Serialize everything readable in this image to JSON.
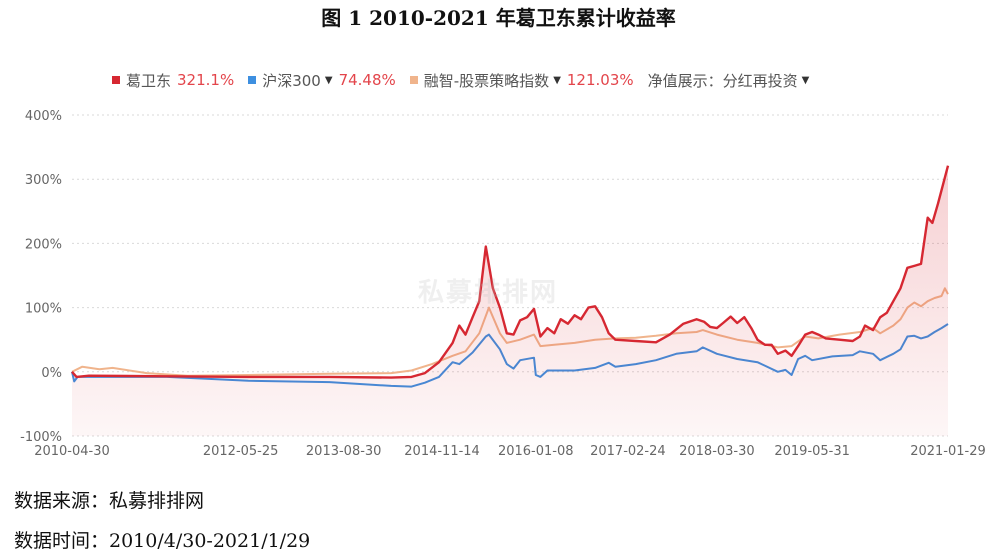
{
  "figure_title": "图 1 2010-2021 年葛卫东累计收益率",
  "watermark": "私募排排网",
  "legend": {
    "items": [
      {
        "name": "葛卫东",
        "value": "321.1%",
        "color": "#d62832",
        "dropdown": false
      },
      {
        "name": "沪深300",
        "value": "74.48%",
        "color": "#3d8fe0",
        "dropdown": true
      },
      {
        "name": "融智-股票策略指数",
        "value": "121.03%",
        "color": "#f0b48c",
        "dropdown": true
      }
    ],
    "net_value_label": "净值展示：分红再投资"
  },
  "footer": {
    "source": "数据来源：私募排排网",
    "time": "数据时间：2010/4/30-2021/1/29"
  },
  "chart_data": {
    "type": "line",
    "x_start": "2010-04-30",
    "x_end": "2021-01-29",
    "x_ticks": [
      "2010-04-30",
      "2012-05-25",
      "2013-08-30",
      "2014-11-14",
      "2016-01-08",
      "2017-02-24",
      "2018-03-30",
      "2019-05-31",
      "2021-01-29"
    ],
    "ylim": [
      -100,
      400
    ],
    "y_ticks": [
      "-100%",
      "0%",
      "100%",
      "200%",
      "300%",
      "400%"
    ],
    "grid": true,
    "legend_position": "top",
    "series": [
      {
        "name": "葛卫东",
        "color": "#d62832",
        "fill": true,
        "points": [
          [
            "2010-04-30",
            0
          ],
          [
            "2010-05-20",
            -8
          ],
          [
            "2010-07-15",
            -6
          ],
          [
            "2011-06-30",
            -7
          ],
          [
            "2012-06-29",
            -8
          ],
          [
            "2013-06-28",
            -8
          ],
          [
            "2014-03-31",
            -9
          ],
          [
            "2014-06-30",
            -8
          ],
          [
            "2014-08-29",
            -2
          ],
          [
            "2014-10-31",
            15
          ],
          [
            "2014-12-31",
            45
          ],
          [
            "2015-01-30",
            72
          ],
          [
            "2015-02-27",
            58
          ],
          [
            "2015-03-31",
            85
          ],
          [
            "2015-04-30",
            110
          ],
          [
            "2015-05-29",
            195
          ],
          [
            "2015-06-30",
            130
          ],
          [
            "2015-07-31",
            100
          ],
          [
            "2015-08-31",
            60
          ],
          [
            "2015-09-30",
            58
          ],
          [
            "2015-10-30",
            80
          ],
          [
            "2015-11-30",
            85
          ],
          [
            "2015-12-31",
            98
          ],
          [
            "2016-01-29",
            55
          ],
          [
            "2016-02-29",
            68
          ],
          [
            "2016-03-31",
            60
          ],
          [
            "2016-04-29",
            82
          ],
          [
            "2016-05-31",
            75
          ],
          [
            "2016-06-30",
            88
          ],
          [
            "2016-07-29",
            82
          ],
          [
            "2016-08-31",
            100
          ],
          [
            "2016-09-30",
            102
          ],
          [
            "2016-10-31",
            85
          ],
          [
            "2016-11-30",
            60
          ],
          [
            "2016-12-30",
            50
          ],
          [
            "2017-03-31",
            48
          ],
          [
            "2017-06-30",
            46
          ],
          [
            "2017-08-31",
            58
          ],
          [
            "2017-10-31",
            75
          ],
          [
            "2017-12-29",
            82
          ],
          [
            "2018-01-31",
            78
          ],
          [
            "2018-02-28",
            70
          ],
          [
            "2018-03-30",
            68
          ],
          [
            "2018-04-27",
            76
          ],
          [
            "2018-05-31",
            86
          ],
          [
            "2018-06-29",
            76
          ],
          [
            "2018-07-31",
            85
          ],
          [
            "2018-08-31",
            68
          ],
          [
            "2018-09-28",
            50
          ],
          [
            "2018-10-31",
            42
          ],
          [
            "2018-11-30",
            42
          ],
          [
            "2018-12-28",
            28
          ],
          [
            "2019-01-31",
            33
          ],
          [
            "2019-02-28",
            25
          ],
          [
            "2019-03-29",
            40
          ],
          [
            "2019-04-30",
            58
          ],
          [
            "2019-05-31",
            62
          ],
          [
            "2019-06-28",
            58
          ],
          [
            "2019-07-31",
            52
          ],
          [
            "2019-09-30",
            50
          ],
          [
            "2019-11-29",
            48
          ],
          [
            "2019-12-31",
            55
          ],
          [
            "2020-01-23",
            72
          ],
          [
            "2020-02-28",
            65
          ],
          [
            "2020-03-31",
            85
          ],
          [
            "2020-04-30",
            92
          ],
          [
            "2020-05-29",
            110
          ],
          [
            "2020-06-30",
            130
          ],
          [
            "2020-07-31",
            162
          ],
          [
            "2020-08-31",
            165
          ],
          [
            "2020-09-30",
            168
          ],
          [
            "2020-10-30",
            240
          ],
          [
            "2020-11-20",
            232
          ],
          [
            "2020-12-15",
            262
          ],
          [
            "2021-01-29",
            321
          ]
        ]
      },
      {
        "name": "沪深300",
        "color": "#3d8fe0",
        "fill": false,
        "points": [
          [
            "2010-04-30",
            0
          ],
          [
            "2010-05-10",
            -15
          ],
          [
            "2010-05-25",
            -8
          ],
          [
            "2010-12-31",
            -8
          ],
          [
            "2011-06-30",
            -8
          ],
          [
            "2012-06-29",
            -14
          ],
          [
            "2013-06-28",
            -16
          ],
          [
            "2014-03-31",
            -22
          ],
          [
            "2014-06-30",
            -23
          ],
          [
            "2014-08-29",
            -17
          ],
          [
            "2014-10-31",
            -8
          ],
          [
            "2014-12-31",
            15
          ],
          [
            "2015-01-30",
            12
          ],
          [
            "2015-03-31",
            30
          ],
          [
            "2015-05-29",
            55
          ],
          [
            "2015-06-12",
            58
          ],
          [
            "2015-07-31",
            35
          ],
          [
            "2015-08-31",
            12
          ],
          [
            "2015-09-30",
            5
          ],
          [
            "2015-10-30",
            18
          ],
          [
            "2015-12-31",
            22
          ],
          [
            "2016-01-08",
            -5
          ],
          [
            "2016-01-29",
            -8
          ],
          [
            "2016-02-29",
            2
          ],
          [
            "2016-06-30",
            2
          ],
          [
            "2016-09-30",
            6
          ],
          [
            "2016-11-30",
            14
          ],
          [
            "2016-12-30",
            8
          ],
          [
            "2017-03-31",
            12
          ],
          [
            "2017-06-30",
            18
          ],
          [
            "2017-09-29",
            28
          ],
          [
            "2017-12-29",
            32
          ],
          [
            "2018-01-26",
            38
          ],
          [
            "2018-03-30",
            28
          ],
          [
            "2018-06-29",
            20
          ],
          [
            "2018-09-28",
            15
          ],
          [
            "2018-12-28",
            0
          ],
          [
            "2019-01-31",
            3
          ],
          [
            "2019-02-28",
            -5
          ],
          [
            "2019-03-29",
            20
          ],
          [
            "2019-04-30",
            25
          ],
          [
            "2019-05-31",
            18
          ],
          [
            "2019-08-30",
            24
          ],
          [
            "2019-11-29",
            26
          ],
          [
            "2019-12-31",
            32
          ],
          [
            "2020-02-28",
            28
          ],
          [
            "2020-03-31",
            18
          ],
          [
            "2020-05-29",
            28
          ],
          [
            "2020-06-30",
            35
          ],
          [
            "2020-07-31",
            55
          ],
          [
            "2020-08-31",
            56
          ],
          [
            "2020-09-30",
            52
          ],
          [
            "2020-10-30",
            55
          ],
          [
            "2020-11-30",
            62
          ],
          [
            "2020-12-31",
            68
          ],
          [
            "2021-01-29",
            74.48
          ]
        ]
      },
      {
        "name": "融智-股票策略指数",
        "color": "#f0b48c",
        "fill": false,
        "points": [
          [
            "2010-04-30",
            0
          ],
          [
            "2010-06-15",
            8
          ],
          [
            "2010-08-31",
            4
          ],
          [
            "2010-10-29",
            6
          ],
          [
            "2011-03-31",
            -2
          ],
          [
            "2011-09-30",
            -6
          ],
          [
            "2012-06-29",
            -5
          ],
          [
            "2013-06-28",
            -3
          ],
          [
            "2014-03-31",
            -2
          ],
          [
            "2014-06-30",
            2
          ],
          [
            "2014-09-30",
            12
          ],
          [
            "2014-12-31",
            25
          ],
          [
            "2015-02-27",
            32
          ],
          [
            "2015-04-30",
            60
          ],
          [
            "2015-06-12",
            100
          ],
          [
            "2015-07-31",
            60
          ],
          [
            "2015-08-31",
            45
          ],
          [
            "2015-10-30",
            50
          ],
          [
            "2015-12-31",
            58
          ],
          [
            "2016-01-29",
            40
          ],
          [
            "2016-03-31",
            42
          ],
          [
            "2016-06-30",
            45
          ],
          [
            "2016-09-30",
            50
          ],
          [
            "2016-12-30",
            52
          ],
          [
            "2017-03-31",
            53
          ],
          [
            "2017-06-30",
            56
          ],
          [
            "2017-09-29",
            60
          ],
          [
            "2017-12-29",
            62
          ],
          [
            "2018-01-26",
            65
          ],
          [
            "2018-03-30",
            58
          ],
          [
            "2018-06-29",
            50
          ],
          [
            "2018-09-28",
            45
          ],
          [
            "2018-12-28",
            38
          ],
          [
            "2019-02-28",
            40
          ],
          [
            "2019-04-30",
            55
          ],
          [
            "2019-06-28",
            52
          ],
          [
            "2019-09-30",
            58
          ],
          [
            "2019-12-31",
            62
          ],
          [
            "2020-02-28",
            68
          ],
          [
            "2020-03-31",
            60
          ],
          [
            "2020-05-29",
            72
          ],
          [
            "2020-06-30",
            82
          ],
          [
            "2020-07-31",
            100
          ],
          [
            "2020-08-31",
            108
          ],
          [
            "2020-09-30",
            102
          ],
          [
            "2020-10-30",
            110
          ],
          [
            "2020-11-30",
            115
          ],
          [
            "2020-12-31",
            118
          ],
          [
            "2021-01-15",
            130
          ],
          [
            "2021-01-29",
            121.03
          ]
        ]
      }
    ]
  }
}
